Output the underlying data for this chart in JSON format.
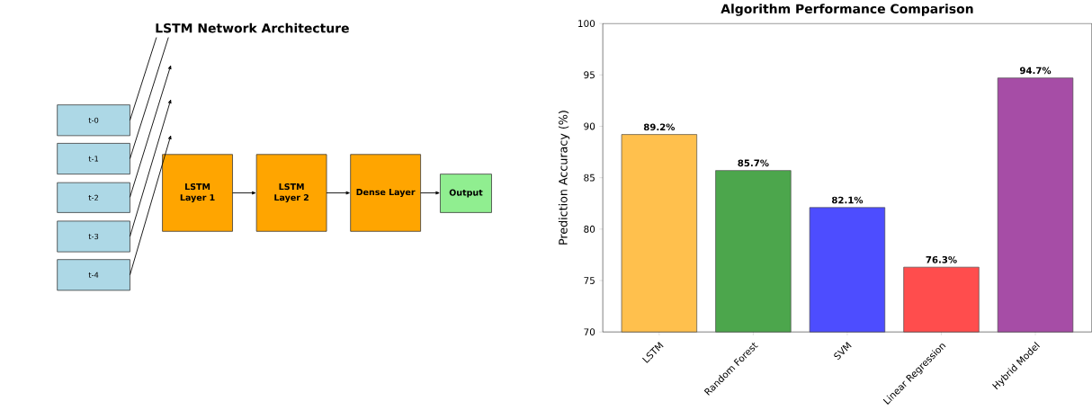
{
  "chart_data": [
    {
      "type": "other",
      "title": "LSTM Network Architecture",
      "annotations": [
        "t-0",
        "t-1",
        "t-2",
        "t-3",
        "t-4",
        "LSTM Layer 1",
        "LSTM Layer 2",
        "Dense Layer",
        "Output"
      ]
    },
    {
      "type": "bar",
      "title": "Algorithm Performance Comparison",
      "ylabel": "Prediction Accuracy (%)",
      "categories": [
        "LSTM",
        "Random Forest",
        "SVM",
        "Linear Regression",
        "Hybrid Model"
      ],
      "values": [
        89.2,
        85.7,
        82.1,
        76.3,
        94.7
      ],
      "value_labels": [
        "89.2%",
        "85.7%",
        "82.1%",
        "76.3%",
        "94.7%"
      ],
      "colors": [
        "#ffc04d",
        "#4ca64c",
        "#4d4dff",
        "#ff4d4d",
        "#a64da6"
      ],
      "ylim": [
        70,
        100
      ],
      "yticks": [
        70,
        75,
        80,
        85,
        90,
        95,
        100
      ]
    }
  ]
}
